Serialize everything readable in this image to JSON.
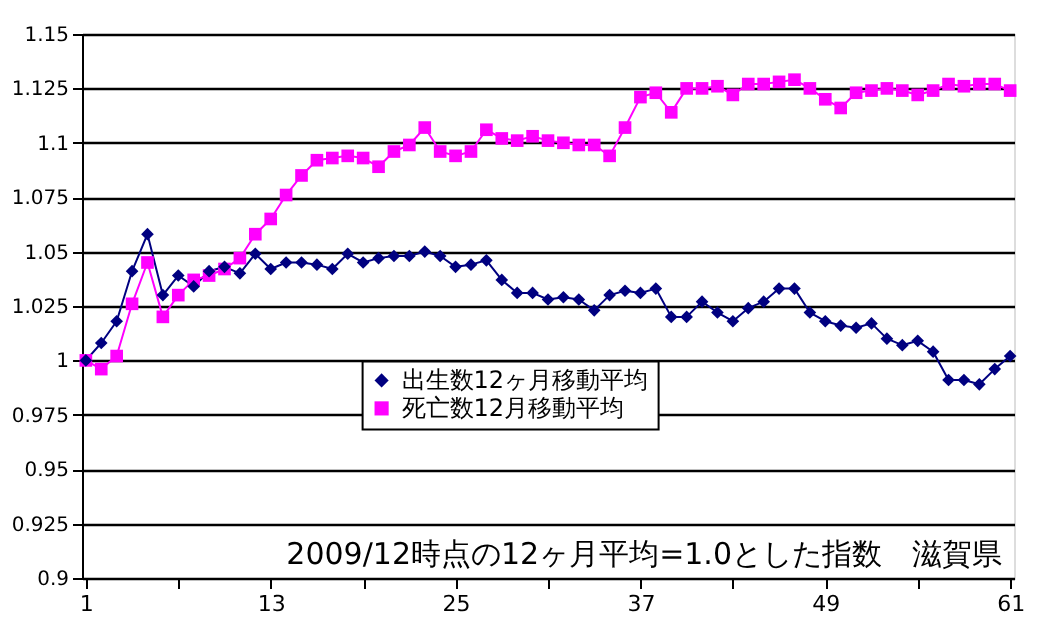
{
  "chart_data": {
    "type": "line",
    "x": [
      1,
      2,
      3,
      4,
      5,
      6,
      7,
      8,
      9,
      10,
      11,
      12,
      13,
      14,
      15,
      16,
      17,
      18,
      19,
      20,
      21,
      22,
      23,
      24,
      25,
      26,
      27,
      28,
      29,
      30,
      31,
      32,
      33,
      34,
      35,
      36,
      37,
      38,
      39,
      40,
      41,
      42,
      43,
      44,
      45,
      46,
      47,
      48,
      49,
      50,
      51,
      52,
      53,
      54,
      55,
      56,
      57,
      58,
      59,
      60,
      61
    ],
    "series": [
      {
        "name": "出生数12ヶ月移動平均",
        "color": "#000080",
        "marker": "diamond",
        "values": [
          1.0,
          1.008,
          1.018,
          1.041,
          1.058,
          1.03,
          1.039,
          1.034,
          1.041,
          1.043,
          1.04,
          1.049,
          1.042,
          1.045,
          1.045,
          1.044,
          1.042,
          1.049,
          1.045,
          1.047,
          1.048,
          1.048,
          1.05,
          1.048,
          1.043,
          1.044,
          1.046,
          1.037,
          1.031,
          1.031,
          1.028,
          1.029,
          1.028,
          1.023,
          1.03,
          1.032,
          1.031,
          1.033,
          1.02,
          1.02,
          1.027,
          1.022,
          1.018,
          1.024,
          1.027,
          1.033,
          1.033,
          1.022,
          1.018,
          1.016,
          1.015,
          1.017,
          1.01,
          1.007,
          1.009,
          1.004,
          0.991,
          0.991,
          0.989,
          0.996,
          1.002
        ]
      },
      {
        "name": "死亡数12月移動平均",
        "color": "#ff00ff",
        "marker": "square",
        "values": [
          1.0,
          0.996,
          1.002,
          1.026,
          1.045,
          1.02,
          1.03,
          1.037,
          1.039,
          1.042,
          1.047,
          1.058,
          1.065,
          1.076,
          1.085,
          1.092,
          1.093,
          1.094,
          1.093,
          1.089,
          1.096,
          1.099,
          1.107,
          1.096,
          1.094,
          1.096,
          1.106,
          1.102,
          1.101,
          1.103,
          1.101,
          1.1,
          1.099,
          1.099,
          1.094,
          1.107,
          1.121,
          1.123,
          1.114,
          1.125,
          1.125,
          1.126,
          1.122,
          1.127,
          1.127,
          1.128,
          1.129,
          1.125,
          1.12,
          1.116,
          1.123,
          1.124,
          1.125,
          1.124,
          1.122,
          1.124,
          1.127,
          1.126,
          1.127,
          1.127,
          1.124
        ]
      }
    ],
    "xlim": [
      0.75,
      61.25
    ],
    "xticks": [
      1,
      {
        "value": 7,
        "label": null
      },
      13,
      {
        "value": 19,
        "label": null
      },
      25,
      {
        "value": 31,
        "label": null
      },
      37,
      {
        "value": 43,
        "label": null
      },
      49,
      {
        "value": 55,
        "label": null
      },
      61
    ],
    "ylim": [
      0.9,
      1.15
    ],
    "yticks": [
      0.9,
      0.925,
      0.95,
      0.975,
      1,
      1.025,
      1.05,
      1.075,
      1.1,
      1.125,
      1.15
    ],
    "grid": "y",
    "legend": "left",
    "annotations": [
      "2009/12時点の12ヶ月平均=1.0とした指数　滋賀県"
    ]
  }
}
